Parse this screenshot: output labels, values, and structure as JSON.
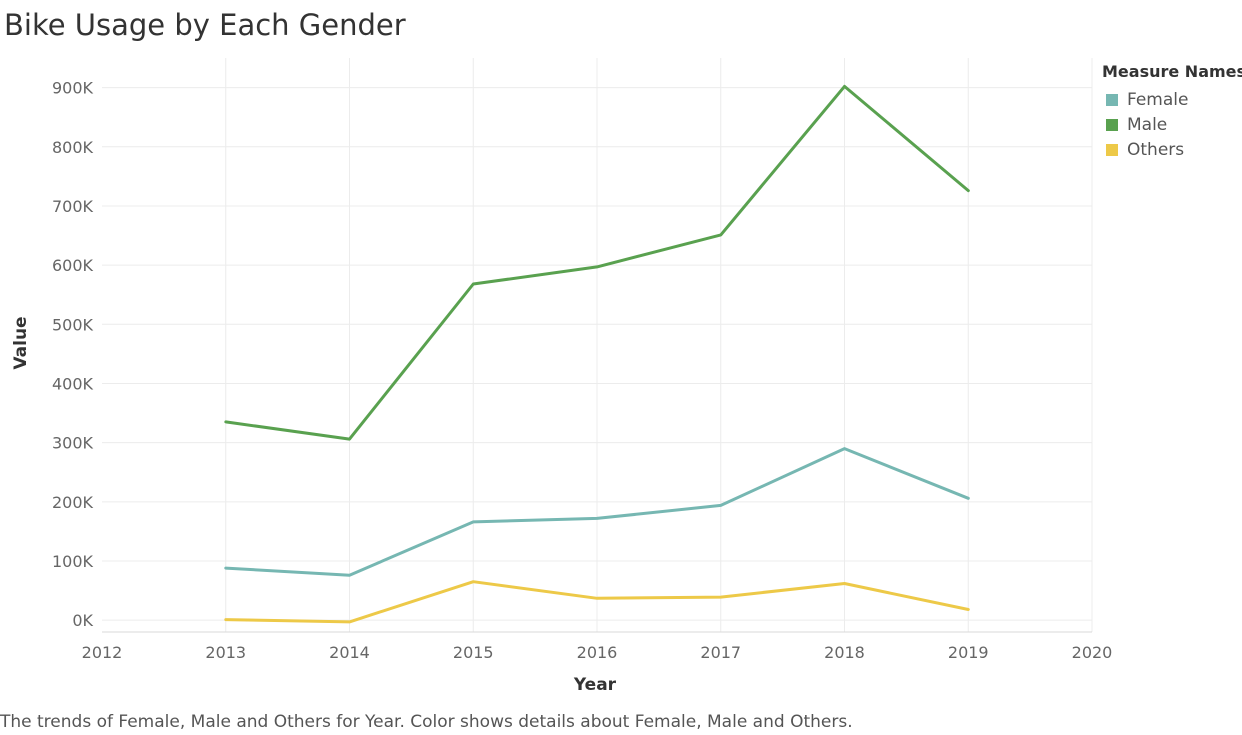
{
  "title": "Bike Usage by Each Gender",
  "caption": "The trends of Female, Male and Others for Year.  Color shows details about Female, Male and Others.",
  "legend": {
    "title": "Measure Names",
    "items": [
      {
        "label": "Female",
        "color": "#76b7b2"
      },
      {
        "label": "Male",
        "color": "#59a14f"
      },
      {
        "label": "Others",
        "color": "#edc948"
      }
    ]
  },
  "chart_data": {
    "type": "line",
    "title": "Bike Usage by Each Gender",
    "xlabel": "Year",
    "ylabel": "Value",
    "x": [
      2013,
      2014,
      2015,
      2016,
      2017,
      2018,
      2019
    ],
    "xlim": [
      2012,
      2020
    ],
    "x_ticks": [
      "2012",
      "2013",
      "2014",
      "2015",
      "2016",
      "2017",
      "2018",
      "2019",
      "2020"
    ],
    "ylim": [
      -20000,
      950000
    ],
    "y_ticks": [
      {
        "value": 0,
        "label": "0K"
      },
      {
        "value": 100000,
        "label": "100K"
      },
      {
        "value": 200000,
        "label": "200K"
      },
      {
        "value": 300000,
        "label": "300K"
      },
      {
        "value": 400000,
        "label": "400K"
      },
      {
        "value": 500000,
        "label": "500K"
      },
      {
        "value": 600000,
        "label": "600K"
      },
      {
        "value": 700000,
        "label": "700K"
      },
      {
        "value": 800000,
        "label": "800K"
      },
      {
        "value": 900000,
        "label": "900K"
      }
    ],
    "grid": true,
    "legend_position": "top-right",
    "series": [
      {
        "name": "Female",
        "color": "#76b7b2",
        "values": [
          88000,
          76000,
          166000,
          172000,
          194000,
          290000,
          206000
        ]
      },
      {
        "name": "Male",
        "color": "#59a14f",
        "values": [
          335000,
          306000,
          568000,
          597000,
          651000,
          902000,
          726000
        ]
      },
      {
        "name": "Others",
        "color": "#edc948",
        "values": [
          1000,
          -3000,
          65000,
          37000,
          39000,
          62000,
          18000
        ]
      }
    ]
  }
}
